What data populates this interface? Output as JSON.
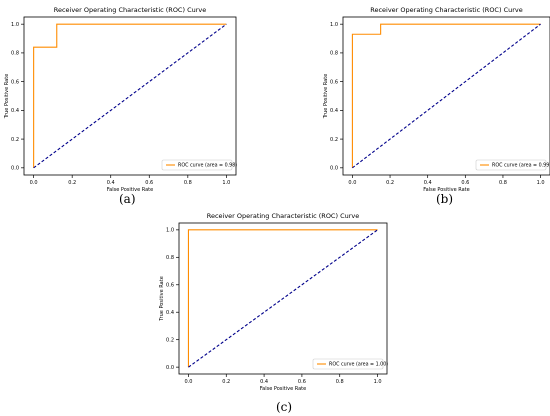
{
  "chart_data": [
    {
      "type": "line",
      "panel_label": "(a)",
      "title": "Receiver Operating Characteristic (ROC) Curve",
      "xlabel": "False Positive Rate",
      "ylabel": "True Positive Rate",
      "xlim": [
        -0.05,
        1.05
      ],
      "ylim": [
        -0.05,
        1.05
      ],
      "xticks": [
        "0.0",
        "0.2",
        "0.4",
        "0.6",
        "0.8",
        "1.0"
      ],
      "yticks": [
        "0.0",
        "0.2",
        "0.4",
        "0.6",
        "0.8",
        "1.0"
      ],
      "grid": false,
      "legend": "lower right",
      "series": [
        {
          "name": "ROC curve (area = 0.98)",
          "color": "#ff8c00",
          "x": [
            0.0,
            0.0,
            0.12,
            0.12,
            1.0
          ],
          "y": [
            0.0,
            0.84,
            0.84,
            1.0,
            1.0
          ]
        },
        {
          "color": "#00008b",
          "style": "dashed",
          "x": [
            0.0,
            1.0
          ],
          "y": [
            0.0,
            1.0
          ]
        }
      ]
    },
    {
      "type": "line",
      "panel_label": "(b)",
      "title": "Receiver Operating Characteristic (ROC) Curve",
      "xlabel": "False Positive Rate",
      "ylabel": "True Positive Rate",
      "xlim": [
        -0.05,
        1.05
      ],
      "ylim": [
        -0.05,
        1.05
      ],
      "xticks": [
        "0.0",
        "0.2",
        "0.4",
        "0.6",
        "0.8",
        "1.0"
      ],
      "yticks": [
        "0.0",
        "0.2",
        "0.4",
        "0.6",
        "0.8",
        "1.0"
      ],
      "grid": false,
      "legend": "lower right",
      "series": [
        {
          "name": "ROC curve (area = 0.99)",
          "color": "#ff8c00",
          "x": [
            0.0,
            0.0,
            0.15,
            0.15,
            1.0
          ],
          "y": [
            0.0,
            0.93,
            0.93,
            1.0,
            1.0
          ]
        },
        {
          "color": "#00008b",
          "style": "dashed",
          "x": [
            0.0,
            1.0
          ],
          "y": [
            0.0,
            1.0
          ]
        }
      ]
    },
    {
      "type": "line",
      "panel_label": "(c)",
      "title": "Receiver Operating Characteristic (ROC) Curve",
      "xlabel": "False Positive Rate",
      "ylabel": "True Positive Rate",
      "xlim": [
        -0.05,
        1.05
      ],
      "ylim": [
        -0.05,
        1.05
      ],
      "xticks": [
        "0.0",
        "0.2",
        "0.4",
        "0.6",
        "0.8",
        "1.0"
      ],
      "yticks": [
        "0.0",
        "0.2",
        "0.4",
        "0.6",
        "0.8",
        "1.0"
      ],
      "grid": false,
      "legend": "lower right",
      "series": [
        {
          "name": "ROC curve (area = 1.00)",
          "color": "#ff8c00",
          "x": [
            0.0,
            0.0,
            1.0
          ],
          "y": [
            0.0,
            1.0,
            1.0
          ]
        },
        {
          "color": "#00008b",
          "style": "dashed",
          "x": [
            0.0,
            1.0
          ],
          "y": [
            0.0,
            1.0
          ]
        }
      ]
    }
  ]
}
